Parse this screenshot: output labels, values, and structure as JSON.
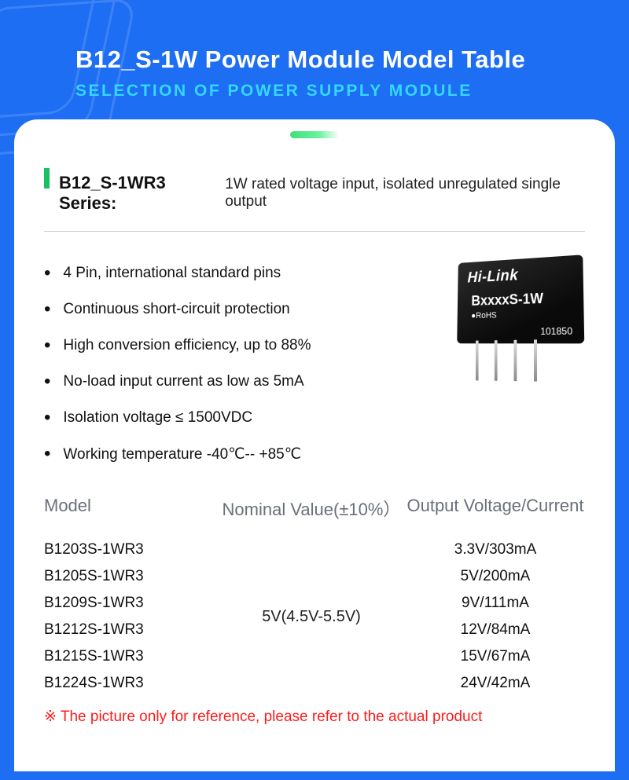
{
  "colors": {
    "page_bg": "#1e6ef4",
    "card_bg": "#ffffff",
    "title": "#ffffff",
    "subtitle": "#34d7ff",
    "accent_green": "#1bbf63",
    "text": "#111111",
    "muted": "#6a6f7a",
    "warning": "#ff1a1a",
    "divider": "#cfcfcf"
  },
  "header": {
    "title": "B12_S-1W Power Module Model Table",
    "subtitle": "SELECTION OF POWER SUPPLY MODULE"
  },
  "series": {
    "name": "B12_S-1WR3 Series:",
    "description": "1W rated voltage input, isolated unregulated single output"
  },
  "features": [
    "4 Pin, international standard pins",
    "Continuous short-circuit protection",
    "High conversion efficiency, up to 88%",
    "No-load input current as low as 5mA",
    "Isolation voltage ≤ 1500VDC",
    "Working temperature -40℃-- +85℃"
  ],
  "chip": {
    "brand": "Hi-Link",
    "model": "BxxxxS-1W",
    "rohs": "●RoHS",
    "code": "101850"
  },
  "table": {
    "headers": {
      "model": "Model",
      "nominal": "Nominal Value(±10%）",
      "output": "Output Voltage/Current"
    },
    "nominal_value": "5V(4.5V-5.5V)",
    "rows": [
      {
        "model": "B1203S-1WR3",
        "output": "3.3V/303mA"
      },
      {
        "model": "B1205S-1WR3",
        "output": "5V/200mA"
      },
      {
        "model": "B1209S-1WR3",
        "output": "9V/111mA"
      },
      {
        "model": "B1212S-1WR3",
        "output": "12V/84mA"
      },
      {
        "model": "B1215S-1WR3",
        "output": "15V/67mA"
      },
      {
        "model": "B1224S-1WR3",
        "output": "24V/42mA"
      }
    ]
  },
  "footnote": "※ The picture only for reference, please refer to the actual product"
}
